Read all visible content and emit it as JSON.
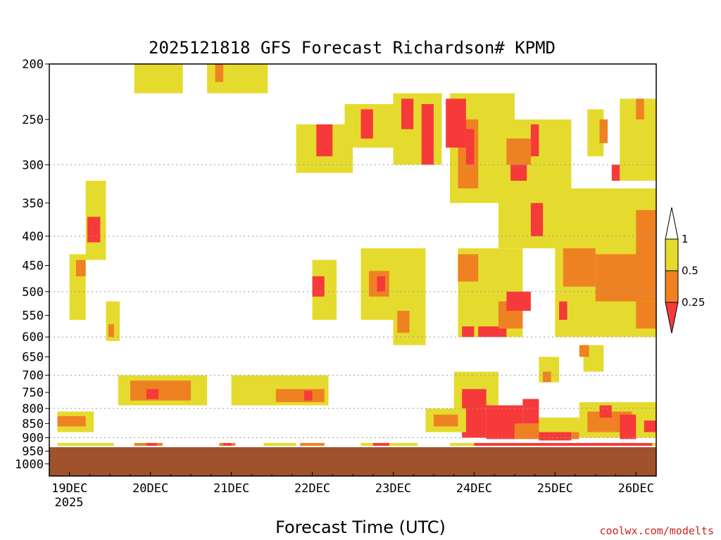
{
  "chart_data": {
    "type": "heatmap",
    "title": "2025121818 GFS Forecast Richardson# KPMD",
    "xlabel": "Forecast Time (UTC)",
    "ylabel": "",
    "credit": "coolwx.com/modelts",
    "x_ticks": [
      {
        "label": "19DEC",
        "day": 19
      },
      {
        "label": "20DEC",
        "day": 20
      },
      {
        "label": "21DEC",
        "day": 21
      },
      {
        "label": "22DEC",
        "day": 22
      },
      {
        "label": "23DEC",
        "day": 23
      },
      {
        "label": "24DEC",
        "day": 24
      },
      {
        "label": "25DEC",
        "day": 25
      },
      {
        "label": "26DEC",
        "day": 26
      }
    ],
    "x_year_label": "2025",
    "x_range": {
      "start": "2025-12-18 18Z",
      "end": "2025-12-26 06Z"
    },
    "y_ticks": [
      200,
      250,
      300,
      350,
      400,
      450,
      500,
      550,
      600,
      650,
      700,
      750,
      800,
      850,
      900,
      950,
      1000
    ],
    "y_scale": "log-pressure",
    "y_range_hpa": [
      200,
      1050
    ],
    "grid_levels": [
      300,
      400,
      500,
      600,
      700,
      800,
      900,
      1000
    ],
    "colorbar": {
      "ticks": [
        "1",
        "0.5",
        "0.25"
      ],
      "bins": [
        {
          "range": "> 1",
          "color": "#ffffff"
        },
        {
          "range": "0.5 - 1",
          "color": "#e5db2e"
        },
        {
          "range": "0.25 - 0.5",
          "color": "#ee8222"
        },
        {
          "range": "< 0.25",
          "color": "#f63a3a"
        }
      ]
    },
    "terrain_color": "#a0522d",
    "surface_pressure_hpa": 935,
    "regions": [
      {
        "bin": "0.5 - 1",
        "t0": 19.0,
        "t1": 19.2,
        "p0": 430,
        "p1": 560
      },
      {
        "bin": "0.25 - 0.5",
        "t0": 19.08,
        "t1": 19.2,
        "p0": 440,
        "p1": 470
      },
      {
        "bin": "0.5 - 1",
        "t0": 19.2,
        "t1": 19.45,
        "p0": 320,
        "p1": 440
      },
      {
        "bin": "< 0.25",
        "t0": 19.22,
        "t1": 19.38,
        "p0": 370,
        "p1": 410
      },
      {
        "bin": "0.5 - 1",
        "t0": 19.45,
        "t1": 19.62,
        "p0": 520,
        "p1": 610
      },
      {
        "bin": "0.25 - 0.5",
        "t0": 19.48,
        "t1": 19.55,
        "p0": 570,
        "p1": 600
      },
      {
        "bin": "0.5 - 1",
        "t0": 18.85,
        "t1": 19.3,
        "p0": 810,
        "p1": 880
      },
      {
        "bin": "0.25 - 0.5",
        "t0": 18.85,
        "t1": 19.2,
        "p0": 825,
        "p1": 860
      },
      {
        "bin": "0.5 - 1",
        "t0": 19.6,
        "t1": 20.7,
        "p0": 700,
        "p1": 790
      },
      {
        "bin": "0.25 - 0.5",
        "t0": 19.75,
        "t1": 20.5,
        "p0": 715,
        "p1": 775
      },
      {
        "bin": "< 0.25",
        "t0": 19.95,
        "t1": 20.1,
        "p0": 740,
        "p1": 770
      },
      {
        "bin": "0.5 - 1",
        "t0": 21.0,
        "t1": 22.2,
        "p0": 700,
        "p1": 790
      },
      {
        "bin": "0.25 - 0.5",
        "t0": 21.55,
        "t1": 22.15,
        "p0": 740,
        "p1": 780
      },
      {
        "bin": "< 0.25",
        "t0": 21.9,
        "t1": 22.0,
        "p0": 745,
        "p1": 775
      },
      {
        "bin": "0.5 - 1",
        "t0": 19.8,
        "t1": 20.4,
        "p0": 200,
        "p1": 225
      },
      {
        "bin": "0.5 - 1",
        "t0": 21.0,
        "t1": 21.45,
        "p0": 200,
        "p1": 225
      },
      {
        "bin": "0.5 - 1",
        "t0": 20.7,
        "t1": 21.1,
        "p0": 200,
        "p1": 225
      },
      {
        "bin": "0.25 - 0.5",
        "t0": 20.8,
        "t1": 20.9,
        "p0": 200,
        "p1": 215
      },
      {
        "bin": "0.5 - 1",
        "t0": 21.8,
        "t1": 22.5,
        "p0": 255,
        "p1": 310
      },
      {
        "bin": "< 0.25",
        "t0": 22.05,
        "t1": 22.25,
        "p0": 255,
        "p1": 290
      },
      {
        "bin": "0.5 - 1",
        "t0": 22.4,
        "t1": 23.0,
        "p0": 235,
        "p1": 280
      },
      {
        "bin": "< 0.25",
        "t0": 22.6,
        "t1": 22.75,
        "p0": 240,
        "p1": 270
      },
      {
        "bin": "0.5 - 1",
        "t0": 23.0,
        "t1": 23.6,
        "p0": 225,
        "p1": 300
      },
      {
        "bin": "< 0.25",
        "t0": 23.1,
        "t1": 23.25,
        "p0": 230,
        "p1": 260
      },
      {
        "bin": "< 0.25",
        "t0": 23.35,
        "t1": 23.5,
        "p0": 235,
        "p1": 300
      },
      {
        "bin": "0.5 - 1",
        "t0": 22.0,
        "t1": 22.3,
        "p0": 440,
        "p1": 560
      },
      {
        "bin": "< 0.25",
        "t0": 22.0,
        "t1": 22.15,
        "p0": 470,
        "p1": 510
      },
      {
        "bin": "0.5 - 1",
        "t0": 22.6,
        "t1": 23.4,
        "p0": 420,
        "p1": 560
      },
      {
        "bin": "0.25 - 0.5",
        "t0": 22.7,
        "t1": 22.95,
        "p0": 460,
        "p1": 510
      },
      {
        "bin": "< 0.25",
        "t0": 22.8,
        "t1": 22.9,
        "p0": 470,
        "p1": 500
      },
      {
        "bin": "0.5 - 1",
        "t0": 23.0,
        "t1": 23.4,
        "p0": 520,
        "p1": 620
      },
      {
        "bin": "0.25 - 0.5",
        "t0": 23.05,
        "t1": 23.2,
        "p0": 540,
        "p1": 590
      },
      {
        "bin": "0.5 - 1",
        "t0": 23.7,
        "t1": 24.5,
        "p0": 225,
        "p1": 350
      },
      {
        "bin": "0.25 - 0.5",
        "t0": 23.8,
        "t1": 24.05,
        "p0": 250,
        "p1": 330
      },
      {
        "bin": "< 0.25",
        "t0": 23.65,
        "t1": 23.9,
        "p0": 230,
        "p1": 280
      },
      {
        "bin": "< 0.25",
        "t0": 23.9,
        "t1": 24.0,
        "p0": 260,
        "p1": 300
      },
      {
        "bin": "0.5 - 1",
        "t0": 24.3,
        "t1": 25.2,
        "p0": 250,
        "p1": 420
      },
      {
        "bin": "0.25 - 0.5",
        "t0": 24.4,
        "t1": 24.7,
        "p0": 270,
        "p1": 300
      },
      {
        "bin": "< 0.25",
        "t0": 24.45,
        "t1": 24.65,
        "p0": 300,
        "p1": 320
      },
      {
        "bin": "< 0.25",
        "t0": 24.7,
        "t1": 24.85,
        "p0": 350,
        "p1": 400
      },
      {
        "bin": "< 0.25",
        "t0": 24.7,
        "t1": 24.8,
        "p0": 255,
        "p1": 290
      },
      {
        "bin": "0.5 - 1",
        "t0": 23.8,
        "t1": 24.6,
        "p0": 420,
        "p1": 600
      },
      {
        "bin": "0.25 - 0.5",
        "t0": 23.8,
        "t1": 24.05,
        "p0": 430,
        "p1": 480
      },
      {
        "bin": "< 0.25",
        "t0": 23.85,
        "t1": 24.0,
        "p0": 575,
        "p1": 600
      },
      {
        "bin": "< 0.25",
        "t0": 24.05,
        "t1": 24.4,
        "p0": 575,
        "p1": 600
      },
      {
        "bin": "0.25 - 0.5",
        "t0": 24.3,
        "t1": 24.6,
        "p0": 520,
        "p1": 580
      },
      {
        "bin": "< 0.25",
        "t0": 24.4,
        "t1": 24.7,
        "p0": 500,
        "p1": 540
      },
      {
        "bin": "0.5 - 1",
        "t0": 25.0,
        "t1": 26.25,
        "p0": 330,
        "p1": 600
      },
      {
        "bin": "0.25 - 0.5",
        "t0": 25.1,
        "t1": 25.5,
        "p0": 420,
        "p1": 490
      },
      {
        "bin": "0.25 - 0.5",
        "t0": 25.5,
        "t1": 26.25,
        "p0": 430,
        "p1": 520
      },
      {
        "bin": "0.25 - 0.5",
        "t0": 26.0,
        "t1": 26.25,
        "p0": 360,
        "p1": 430
      },
      {
        "bin": "< 0.25",
        "t0": 25.05,
        "t1": 25.15,
        "p0": 520,
        "p1": 560
      },
      {
        "bin": "0.25 - 0.5",
        "t0": 26.0,
        "t1": 26.25,
        "p0": 520,
        "p1": 580
      },
      {
        "bin": "0.5 - 1",
        "t0": 25.4,
        "t1": 25.6,
        "p0": 240,
        "p1": 290
      },
      {
        "bin": "0.25 - 0.5",
        "t0": 25.55,
        "t1": 25.65,
        "p0": 250,
        "p1": 275
      },
      {
        "bin": "0.5 - 1",
        "t0": 25.8,
        "t1": 26.25,
        "p0": 230,
        "p1": 320
      },
      {
        "bin": "0.25 - 0.5",
        "t0": 26.0,
        "t1": 26.1,
        "p0": 230,
        "p1": 250
      },
      {
        "bin": "< 0.25",
        "t0": 25.7,
        "t1": 25.8,
        "p0": 300,
        "p1": 320
      },
      {
        "bin": "0.5 - 1",
        "t0": 23.75,
        "t1": 24.3,
        "p0": 690,
        "p1": 800
      },
      {
        "bin": "< 0.25",
        "t0": 23.85,
        "t1": 24.15,
        "p0": 740,
        "p1": 900
      },
      {
        "bin": "0.5 - 1",
        "t0": 23.4,
        "t1": 23.9,
        "p0": 800,
        "p1": 880
      },
      {
        "bin": "0.25 - 0.5",
        "t0": 23.5,
        "t1": 23.8,
        "p0": 820,
        "p1": 860
      },
      {
        "bin": "< 0.25",
        "t0": 24.15,
        "t1": 24.6,
        "p0": 790,
        "p1": 905
      },
      {
        "bin": "0.25 - 0.5",
        "t0": 24.5,
        "t1": 25.3,
        "p0": 850,
        "p1": 905
      },
      {
        "bin": "< 0.25",
        "t0": 24.6,
        "t1": 24.8,
        "p0": 770,
        "p1": 850
      },
      {
        "bin": "0.5 - 1",
        "t0": 24.8,
        "t1": 25.3,
        "p0": 830,
        "p1": 880
      },
      {
        "bin": "< 0.25",
        "t0": 24.8,
        "t1": 25.2,
        "p0": 880,
        "p1": 910
      },
      {
        "bin": "0.5 - 1",
        "t0": 25.3,
        "t1": 26.25,
        "p0": 780,
        "p1": 900
      },
      {
        "bin": "0.25 - 0.5",
        "t0": 25.4,
        "t1": 25.95,
        "p0": 810,
        "p1": 880
      },
      {
        "bin": "< 0.25",
        "t0": 25.55,
        "t1": 25.7,
        "p0": 790,
        "p1": 830
      },
      {
        "bin": "< 0.25",
        "t0": 25.8,
        "t1": 26.0,
        "p0": 820,
        "p1": 905
      },
      {
        "bin": "< 0.25",
        "t0": 26.1,
        "t1": 26.25,
        "p0": 840,
        "p1": 880
      },
      {
        "bin": "0.5 - 1",
        "t0": 24.8,
        "t1": 25.05,
        "p0": 650,
        "p1": 720
      },
      {
        "bin": "0.25 - 0.5",
        "t0": 24.85,
        "t1": 24.95,
        "p0": 690,
        "p1": 720
      },
      {
        "bin": "0.5 - 1",
        "t0": 25.35,
        "t1": 25.6,
        "p0": 620,
        "p1": 690
      },
      {
        "bin": "0.25 - 0.5",
        "t0": 25.3,
        "t1": 25.42,
        "p0": 620,
        "p1": 650
      }
    ],
    "surface_bands": [
      {
        "bin": "0.5 - 1",
        "t0": 18.85,
        "t1": 19.55
      },
      {
        "bin": "0.25 - 0.5",
        "t0": 19.8,
        "t1": 20.15
      },
      {
        "bin": "< 0.25",
        "t0": 19.95,
        "t1": 20.08
      },
      {
        "bin": "0.25 - 0.5",
        "t0": 20.85,
        "t1": 21.05
      },
      {
        "bin": "< 0.25",
        "t0": 20.9,
        "t1": 21.0
      },
      {
        "bin": "0.5 - 1",
        "t0": 21.4,
        "t1": 21.8
      },
      {
        "bin": "0.25 - 0.5",
        "t0": 21.85,
        "t1": 22.15
      },
      {
        "bin": "0.5 - 1",
        "t0": 22.6,
        "t1": 23.3
      },
      {
        "bin": "< 0.25",
        "t0": 22.75,
        "t1": 22.95
      },
      {
        "bin": "0.5 - 1",
        "t0": 23.7,
        "t1": 26.25
      },
      {
        "bin": "< 0.25",
        "t0": 24.0,
        "t1": 26.2
      }
    ]
  }
}
